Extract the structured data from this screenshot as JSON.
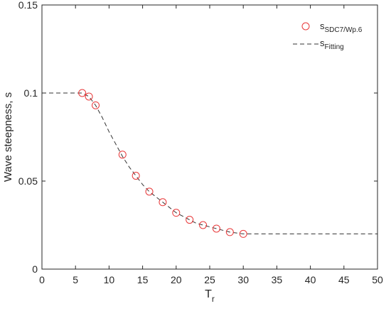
{
  "chart_data": {
    "type": "scatter",
    "title": "",
    "xlabel_main": "T",
    "xlabel_sub": "r",
    "ylabel": "Wave steepness, s",
    "xlim": [
      0,
      50
    ],
    "ylim": [
      0,
      0.15
    ],
    "x_ticks": [
      "0",
      "5",
      "10",
      "15",
      "20",
      "25",
      "30",
      "35",
      "40",
      "45",
      "50"
    ],
    "y_ticks": [
      "0",
      "0.05",
      "0.1",
      "0.15"
    ],
    "grid": false,
    "legend_position": "top-right",
    "series": [
      {
        "name_main": "s",
        "name_sub": "SDC7/Wp.6",
        "style": "circle-markers",
        "color": "#e8393a",
        "x": [
          6,
          7,
          8,
          12,
          14,
          16,
          18,
          20,
          22,
          24,
          26,
          28,
          30
        ],
        "y": [
          0.1,
          0.098,
          0.093,
          0.065,
          0.053,
          0.044,
          0.038,
          0.032,
          0.028,
          0.025,
          0.023,
          0.021,
          0.02
        ]
      },
      {
        "name_main": "s",
        "name_sub": "Fitting",
        "style": "dashed-line",
        "color": "#333333",
        "x": [
          0,
          6,
          7,
          8,
          9,
          10,
          11,
          12,
          13,
          14,
          15,
          16,
          17,
          18,
          19,
          20,
          21,
          22,
          23,
          24,
          25,
          26,
          27,
          28,
          29,
          30,
          50
        ],
        "y": [
          0.1,
          0.1,
          0.098,
          0.093,
          0.086,
          0.078,
          0.071,
          0.064,
          0.058,
          0.053,
          0.048,
          0.044,
          0.041,
          0.038,
          0.035,
          0.032,
          0.03,
          0.028,
          0.026,
          0.025,
          0.024,
          0.023,
          0.022,
          0.021,
          0.0205,
          0.02,
          0.02
        ]
      }
    ]
  }
}
